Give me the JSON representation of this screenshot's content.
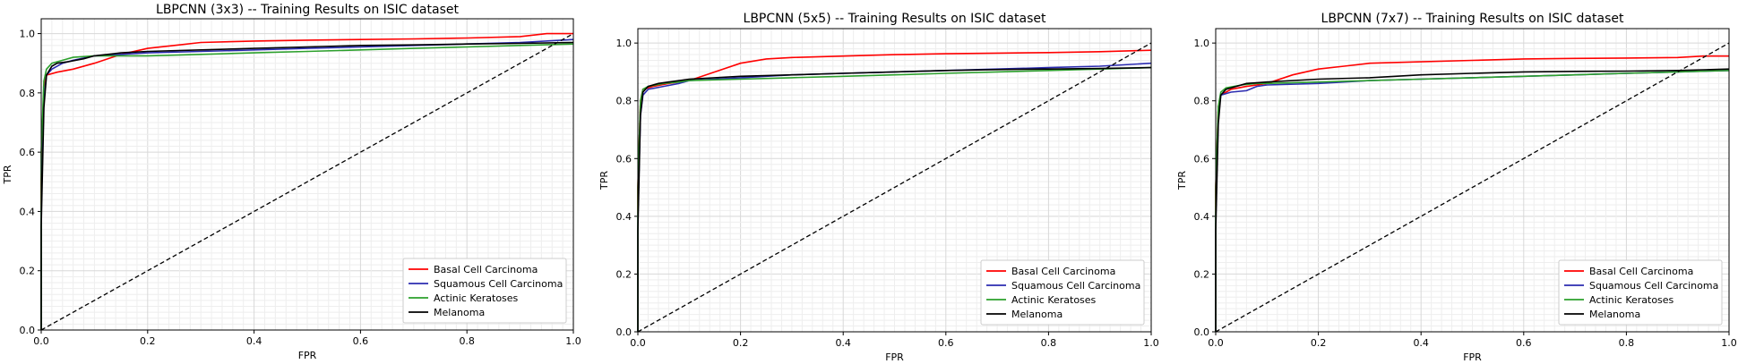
{
  "chart_data": [
    {
      "type": "line",
      "title": "LBPCNN (3x3) -- Training Results on ISIC dataset",
      "xlabel": "FPR",
      "ylabel": "TPR",
      "xlim": [
        0,
        1
      ],
      "ylim": [
        0,
        1.05
      ],
      "xticks": [
        "0.0",
        "0.2",
        "0.4",
        "0.6",
        "0.8",
        "1.0"
      ],
      "yticks": [
        "0.0",
        "0.2",
        "0.4",
        "0.6",
        "0.8",
        "1.0"
      ],
      "grid": true,
      "legend_position": "bottom-right",
      "series": [
        {
          "name": "Basal Cell Carcinoma",
          "color": "#ff0000",
          "points": [
            [
              0,
              0
            ],
            [
              0,
              0.5
            ],
            [
              0.005,
              0.82
            ],
            [
              0.01,
              0.86
            ],
            [
              0.03,
              0.87
            ],
            [
              0.06,
              0.88
            ],
            [
              0.1,
              0.9
            ],
            [
              0.15,
              0.93
            ],
            [
              0.2,
              0.95
            ],
            [
              0.25,
              0.96
            ],
            [
              0.3,
              0.97
            ],
            [
              0.4,
              0.975
            ],
            [
              0.5,
              0.978
            ],
            [
              0.6,
              0.98
            ],
            [
              0.7,
              0.982
            ],
            [
              0.8,
              0.985
            ],
            [
              0.9,
              0.99
            ],
            [
              0.95,
              1.0
            ],
            [
              1.0,
              1.0
            ]
          ]
        },
        {
          "name": "Squamous Cell Carcinoma",
          "color": "#2b2bb0",
          "points": [
            [
              0,
              0
            ],
            [
              0,
              0.4
            ],
            [
              0.005,
              0.78
            ],
            [
              0.01,
              0.86
            ],
            [
              0.02,
              0.88
            ],
            [
              0.04,
              0.9
            ],
            [
              0.06,
              0.91
            ],
            [
              0.1,
              0.925
            ],
            [
              0.15,
              0.93
            ],
            [
              0.2,
              0.935
            ],
            [
              0.3,
              0.94
            ],
            [
              0.4,
              0.945
            ],
            [
              0.5,
              0.95
            ],
            [
              0.6,
              0.955
            ],
            [
              0.7,
              0.96
            ],
            [
              0.8,
              0.965
            ],
            [
              0.9,
              0.97
            ],
            [
              1.0,
              0.98
            ]
          ]
        },
        {
          "name": "Actinic Keratoses",
          "color": "#2ca02c",
          "points": [
            [
              0,
              0
            ],
            [
              0,
              0.6
            ],
            [
              0.005,
              0.84
            ],
            [
              0.01,
              0.88
            ],
            [
              0.02,
              0.9
            ],
            [
              0.04,
              0.91
            ],
            [
              0.06,
              0.92
            ],
            [
              0.1,
              0.925
            ],
            [
              0.15,
              0.925
            ],
            [
              0.2,
              0.925
            ],
            [
              0.3,
              0.93
            ],
            [
              0.4,
              0.935
            ],
            [
              0.5,
              0.94
            ],
            [
              0.6,
              0.945
            ],
            [
              0.7,
              0.95
            ],
            [
              0.8,
              0.955
            ],
            [
              0.9,
              0.96
            ],
            [
              1.0,
              0.965
            ]
          ]
        },
        {
          "name": "Melanoma",
          "color": "#000000",
          "points": [
            [
              0,
              0
            ],
            [
              0,
              0.35
            ],
            [
              0.005,
              0.75
            ],
            [
              0.01,
              0.86
            ],
            [
              0.02,
              0.89
            ],
            [
              0.03,
              0.9
            ],
            [
              0.05,
              0.905
            ],
            [
              0.08,
              0.915
            ],
            [
              0.1,
              0.925
            ],
            [
              0.15,
              0.935
            ],
            [
              0.2,
              0.94
            ],
            [
              0.3,
              0.945
            ],
            [
              0.4,
              0.95
            ],
            [
              0.5,
              0.955
            ],
            [
              0.6,
              0.96
            ],
            [
              0.7,
              0.962
            ],
            [
              0.8,
              0.965
            ],
            [
              0.9,
              0.967
            ],
            [
              1.0,
              0.97
            ]
          ]
        },
        {
          "name": "",
          "color": "#000000",
          "dashed": true,
          "points": [
            [
              0,
              0
            ],
            [
              1,
              1
            ]
          ]
        }
      ]
    },
    {
      "type": "line",
      "title": "LBPCNN (5x5) -- Training Results on ISIC dataset",
      "xlabel": "FPR",
      "ylabel": "TPR",
      "xlim": [
        0,
        1
      ],
      "ylim": [
        0,
        1.05
      ],
      "xticks": [
        "0.0",
        "0.2",
        "0.4",
        "0.6",
        "0.8",
        "1.0"
      ],
      "yticks": [
        "0.0",
        "0.2",
        "0.4",
        "0.6",
        "0.8",
        "1.0"
      ],
      "grid": true,
      "legend_position": "bottom-right",
      "series": [
        {
          "name": "Basal Cell Carcinoma",
          "color": "#ff0000",
          "points": [
            [
              0,
              0
            ],
            [
              0,
              0.5
            ],
            [
              0.005,
              0.8
            ],
            [
              0.01,
              0.84
            ],
            [
              0.03,
              0.85
            ],
            [
              0.06,
              0.86
            ],
            [
              0.1,
              0.87
            ],
            [
              0.15,
              0.9
            ],
            [
              0.2,
              0.93
            ],
            [
              0.25,
              0.945
            ],
            [
              0.3,
              0.95
            ],
            [
              0.4,
              0.955
            ],
            [
              0.5,
              0.96
            ],
            [
              0.6,
              0.963
            ],
            [
              0.7,
              0.965
            ],
            [
              0.8,
              0.967
            ],
            [
              0.9,
              0.97
            ],
            [
              1.0,
              0.975
            ]
          ]
        },
        {
          "name": "Squamous Cell Carcinoma",
          "color": "#2b2bb0",
          "points": [
            [
              0,
              0
            ],
            [
              0,
              0.4
            ],
            [
              0.005,
              0.75
            ],
            [
              0.01,
              0.82
            ],
            [
              0.02,
              0.84
            ],
            [
              0.05,
              0.85
            ],
            [
              0.08,
              0.86
            ],
            [
              0.1,
              0.87
            ],
            [
              0.2,
              0.88
            ],
            [
              0.3,
              0.89
            ],
            [
              0.4,
              0.895
            ],
            [
              0.5,
              0.9
            ],
            [
              0.6,
              0.905
            ],
            [
              0.7,
              0.91
            ],
            [
              0.8,
              0.915
            ],
            [
              0.9,
              0.92
            ],
            [
              1.0,
              0.93
            ]
          ]
        },
        {
          "name": "Actinic Keratoses",
          "color": "#2ca02c",
          "points": [
            [
              0,
              0
            ],
            [
              0,
              0.5
            ],
            [
              0.005,
              0.8
            ],
            [
              0.01,
              0.84
            ],
            [
              0.02,
              0.85
            ],
            [
              0.05,
              0.86
            ],
            [
              0.08,
              0.865
            ],
            [
              0.1,
              0.87
            ],
            [
              0.2,
              0.875
            ],
            [
              0.3,
              0.88
            ],
            [
              0.4,
              0.885
            ],
            [
              0.5,
              0.89
            ],
            [
              0.6,
              0.895
            ],
            [
              0.7,
              0.9
            ],
            [
              0.8,
              0.905
            ],
            [
              0.9,
              0.91
            ],
            [
              1.0,
              0.915
            ]
          ]
        },
        {
          "name": "Melanoma",
          "color": "#000000",
          "points": [
            [
              0,
              0
            ],
            [
              0,
              0.35
            ],
            [
              0.005,
              0.75
            ],
            [
              0.01,
              0.83
            ],
            [
              0.02,
              0.85
            ],
            [
              0.04,
              0.86
            ],
            [
              0.06,
              0.865
            ],
            [
              0.1,
              0.875
            ],
            [
              0.2,
              0.885
            ],
            [
              0.3,
              0.89
            ],
            [
              0.4,
              0.895
            ],
            [
              0.5,
              0.9
            ],
            [
              0.6,
              0.905
            ],
            [
              0.7,
              0.908
            ],
            [
              0.8,
              0.91
            ],
            [
              0.9,
              0.912
            ],
            [
              1.0,
              0.915
            ]
          ]
        },
        {
          "name": "",
          "color": "#000000",
          "dashed": true,
          "points": [
            [
              0,
              0
            ],
            [
              1,
              1
            ]
          ]
        }
      ]
    },
    {
      "type": "line",
      "title": "LBPCNN (7x7) -- Training Results on ISIC dataset",
      "xlabel": "FPR",
      "ylabel": "TPR",
      "xlim": [
        0,
        1
      ],
      "ylim": [
        0,
        1.05
      ],
      "xticks": [
        "0.0",
        "0.2",
        "0.4",
        "0.6",
        "0.8",
        "1.0"
      ],
      "yticks": [
        "0.0",
        "0.2",
        "0.4",
        "0.6",
        "0.8",
        "1.0"
      ],
      "grid": true,
      "legend_position": "bottom-right",
      "series": [
        {
          "name": "Basal Cell Carcinoma",
          "color": "#ff0000",
          "points": [
            [
              0,
              0
            ],
            [
              0,
              0.5
            ],
            [
              0.005,
              0.78
            ],
            [
              0.01,
              0.82
            ],
            [
              0.03,
              0.84
            ],
            [
              0.06,
              0.85
            ],
            [
              0.1,
              0.86
            ],
            [
              0.15,
              0.89
            ],
            [
              0.2,
              0.91
            ],
            [
              0.25,
              0.92
            ],
            [
              0.3,
              0.93
            ],
            [
              0.4,
              0.935
            ],
            [
              0.5,
              0.94
            ],
            [
              0.6,
              0.945
            ],
            [
              0.7,
              0.947
            ],
            [
              0.8,
              0.948
            ],
            [
              0.9,
              0.95
            ],
            [
              0.95,
              0.955
            ],
            [
              1.0,
              0.955
            ]
          ]
        },
        {
          "name": "Squamous Cell Carcinoma",
          "color": "#2b2bb0",
          "points": [
            [
              0,
              0
            ],
            [
              0,
              0.4
            ],
            [
              0.005,
              0.75
            ],
            [
              0.01,
              0.82
            ],
            [
              0.03,
              0.83
            ],
            [
              0.06,
              0.835
            ],
            [
              0.08,
              0.85
            ],
            [
              0.1,
              0.855
            ],
            [
              0.2,
              0.86
            ],
            [
              0.3,
              0.87
            ],
            [
              0.4,
              0.875
            ],
            [
              0.5,
              0.88
            ],
            [
              0.6,
              0.885
            ],
            [
              0.7,
              0.89
            ],
            [
              0.8,
              0.895
            ],
            [
              0.9,
              0.9
            ],
            [
              1.0,
              0.905
            ]
          ]
        },
        {
          "name": "Actinic Keratoses",
          "color": "#2ca02c",
          "points": [
            [
              0,
              0
            ],
            [
              0,
              0.5
            ],
            [
              0.005,
              0.78
            ],
            [
              0.01,
              0.83
            ],
            [
              0.02,
              0.845
            ],
            [
              0.05,
              0.855
            ],
            [
              0.08,
              0.86
            ],
            [
              0.1,
              0.86
            ],
            [
              0.2,
              0.865
            ],
            [
              0.3,
              0.87
            ],
            [
              0.4,
              0.875
            ],
            [
              0.5,
              0.88
            ],
            [
              0.6,
              0.885
            ],
            [
              0.7,
              0.89
            ],
            [
              0.8,
              0.895
            ],
            [
              0.9,
              0.9
            ],
            [
              1.0,
              0.905
            ]
          ]
        },
        {
          "name": "Melanoma",
          "color": "#000000",
          "points": [
            [
              0,
              0
            ],
            [
              0,
              0.35
            ],
            [
              0.005,
              0.72
            ],
            [
              0.01,
              0.82
            ],
            [
              0.02,
              0.84
            ],
            [
              0.04,
              0.85
            ],
            [
              0.06,
              0.86
            ],
            [
              0.1,
              0.865
            ],
            [
              0.2,
              0.875
            ],
            [
              0.3,
              0.88
            ],
            [
              0.4,
              0.89
            ],
            [
              0.5,
              0.895
            ],
            [
              0.6,
              0.9
            ],
            [
              0.7,
              0.902
            ],
            [
              0.8,
              0.903
            ],
            [
              0.9,
              0.905
            ],
            [
              1.0,
              0.91
            ]
          ]
        },
        {
          "name": "",
          "color": "#000000",
          "dashed": true,
          "points": [
            [
              0,
              0
            ],
            [
              1,
              1
            ]
          ]
        }
      ]
    }
  ]
}
